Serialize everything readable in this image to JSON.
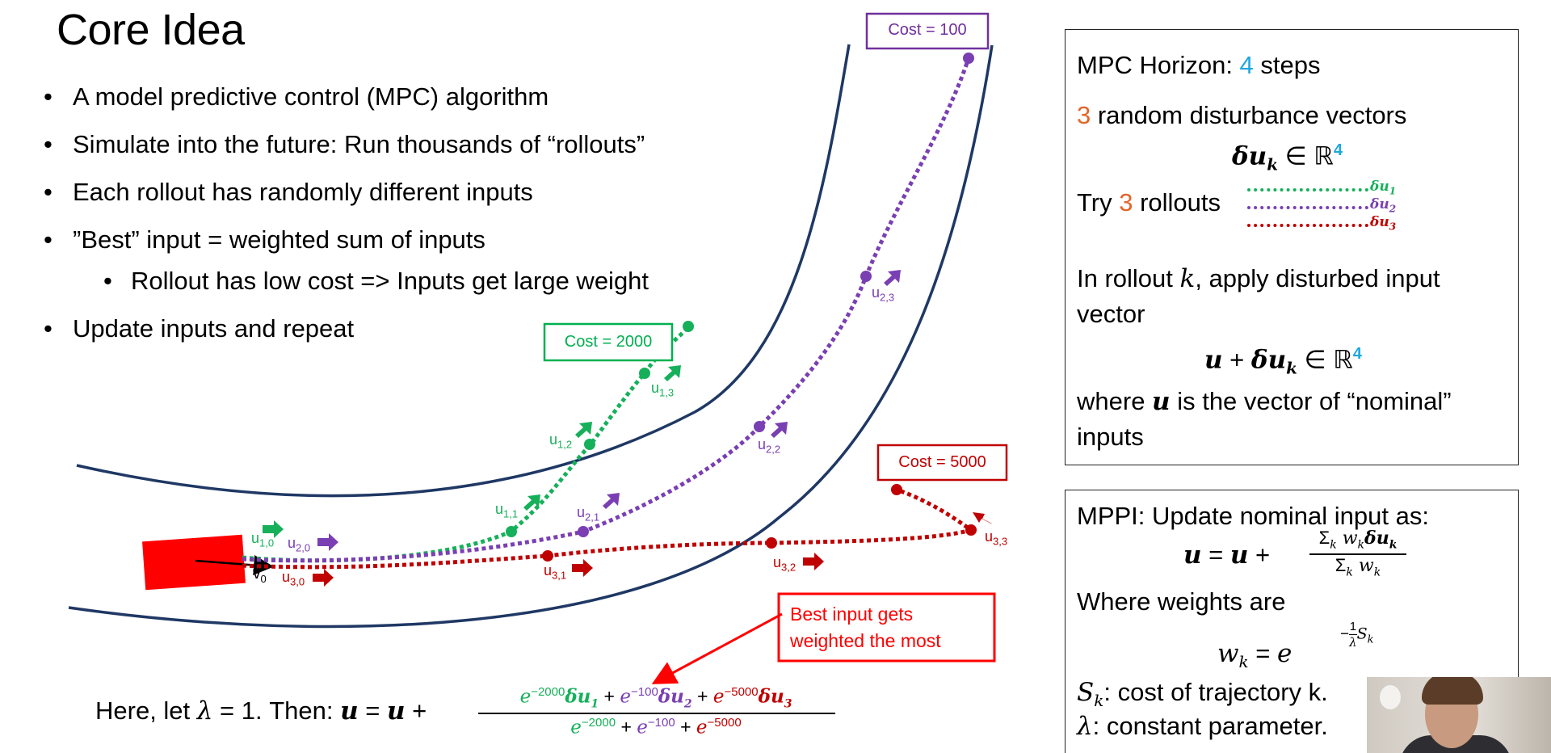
{
  "slide": {
    "title": "Core Idea",
    "bullets": [
      "A model predictive control (MPC) algorithm",
      "Simulate into the future: Run thousands of “rollouts”",
      "Each rollout has randomly different inputs",
      "”Best” input = weighted sum of inputs",
      "Rollout has low cost => Inputs get large weight",
      "Update inputs and repeat"
    ]
  },
  "diagram": {
    "cost_boxes": [
      {
        "label": "Cost = 100",
        "color": "#7030a0"
      },
      {
        "label": "Cost = 2000",
        "color": "#00b050"
      },
      {
        "label": "Cost = 5000",
        "color": "#c00000"
      }
    ],
    "callout": {
      "line1": "Best input gets",
      "line2": "weighted the most",
      "color": "#ff0000"
    },
    "velocity_label": "v",
    "velocity_sub": "0",
    "input_labels": [
      {
        "base": "u",
        "sub": "1,0",
        "color": "#16b05a"
      },
      {
        "base": "u",
        "sub": "2,0",
        "color": "#7a3fb3"
      },
      {
        "base": "u",
        "sub": "3,0",
        "color": "#c00000"
      },
      {
        "base": "u",
        "sub": "1,1",
        "color": "#16b05a"
      },
      {
        "base": "u",
        "sub": "1,2",
        "color": "#16b05a"
      },
      {
        "base": "u",
        "sub": "1,3",
        "color": "#16b05a"
      },
      {
        "base": "u",
        "sub": "2,1",
        "color": "#7a3fb3"
      },
      {
        "base": "u",
        "sub": "2,2",
        "color": "#7a3fb3"
      },
      {
        "base": "u",
        "sub": "2,3",
        "color": "#7a3fb3"
      },
      {
        "base": "u",
        "sub": "3,1",
        "color": "#c00000"
      },
      {
        "base": "u",
        "sub": "3,2",
        "color": "#c00000"
      },
      {
        "base": "u",
        "sub": "3,3",
        "color": "#c00000"
      }
    ],
    "car_color": "#ff0000",
    "road_color": "#1f3864"
  },
  "equation": {
    "prefix": "Here, let ",
    "lambda": "λ",
    "eq_one": " = 1. Then: ",
    "lhs": "u",
    "eq": " = ",
    "rhs_u": "u",
    "plus": " + ",
    "num": [
      "e",
      "−2000",
      "δu",
      "1",
      " + ",
      "e",
      "−100",
      "δu",
      "2",
      " + ",
      "e",
      "−5000",
      "δu",
      "3"
    ],
    "den": [
      "e",
      "−2000",
      " + ",
      "e",
      "−100",
      " + ",
      "e",
      "−5000"
    ]
  },
  "box1": {
    "horizon_a": "MPC Horizon: ",
    "horizon_n": "4",
    "horizon_b": " steps",
    "dist_n": "3",
    "dist_b": " random disturbance vectors",
    "du": "δu",
    "du_sub": "k",
    "in": " ∈ ℝ",
    "dim": "4",
    "try_a": "Try ",
    "try_n": "3",
    "try_b": " rollouts",
    "legend": [
      {
        "label": "δu",
        "sub": "1",
        "color": "#16b05a"
      },
      {
        "label": "δu",
        "sub": "2",
        "color": "#7a3fb3"
      },
      {
        "label": "δu",
        "sub": "3",
        "color": "#c00000"
      }
    ],
    "apply_a": "In rollout ",
    "apply_k": "k",
    "apply_b": ", apply disturbed input",
    "apply_c": "vector",
    "sum_u": "u",
    "sum_plus": " + ",
    "where_a": "where ",
    "where_u": "u",
    "where_b": " is the vector of “nominal”",
    "where_c": "inputs"
  },
  "box2": {
    "line1": "MPPI: Update nominal input as:",
    "u": "u",
    "eq": " = ",
    "plus": " + ",
    "frac_num": "Σ",
    "frac_num_sub": "k",
    "frac_num_w": " w",
    "frac_num_wsub": "k",
    "frac_num_du": "δu",
    "frac_num_dusub": "k",
    "frac_den": "Σ",
    "frac_den_sub": "k",
    "frac_den_w": " w",
    "frac_den_wsub": "k",
    "weights_label": "Where weights are",
    "w": "w",
    "w_sub": "k",
    "w_eq": " = ",
    "w_e": "e",
    "exp_minus": "−",
    "exp_one": "1",
    "exp_lambda": "λ",
    "exp_s": "S",
    "exp_ssub": "k",
    "sk": "S",
    "sk_sub": "k",
    "sk_text": ": cost of trajectory k.",
    "lam": "λ",
    "lam_text": ": constant parameter."
  }
}
